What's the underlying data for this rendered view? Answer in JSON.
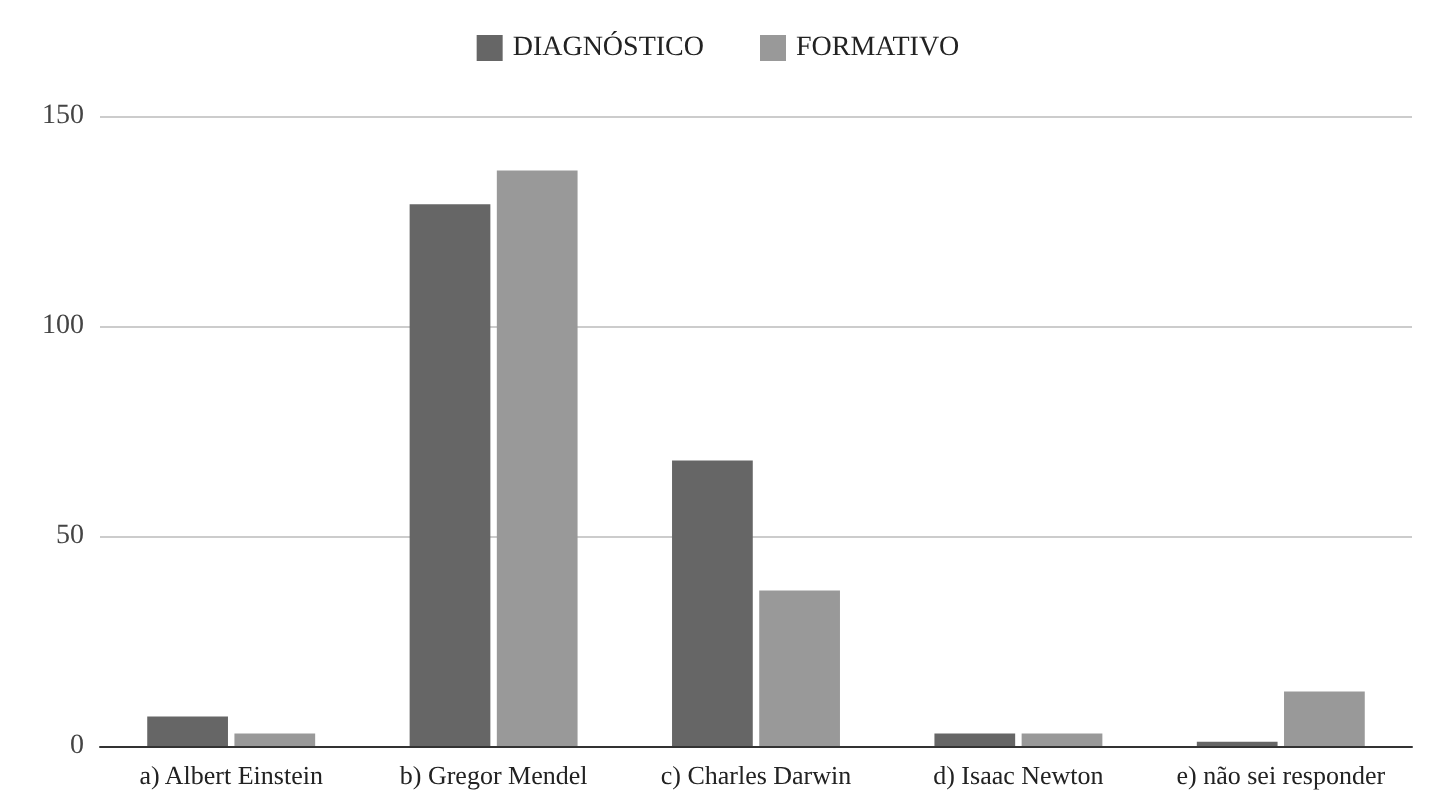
{
  "chart_data": {
    "type": "bar",
    "categories": [
      "a) Albert Einstein",
      "b) Gregor Mendel",
      "c) Charles Darwin",
      "d) Isaac Newton",
      "e) não sei responder"
    ],
    "series": [
      {
        "name": "DIAGNÓSTICO",
        "color": "#666666",
        "values": [
          7,
          129,
          68,
          3,
          1
        ]
      },
      {
        "name": "FORMATIVO",
        "color": "#999999",
        "values": [
          3,
          137,
          37,
          3,
          13
        ]
      }
    ],
    "ylim": [
      0,
      150
    ],
    "yticks": [
      0,
      50,
      100,
      150
    ],
    "grid": "y",
    "legend": "top"
  }
}
